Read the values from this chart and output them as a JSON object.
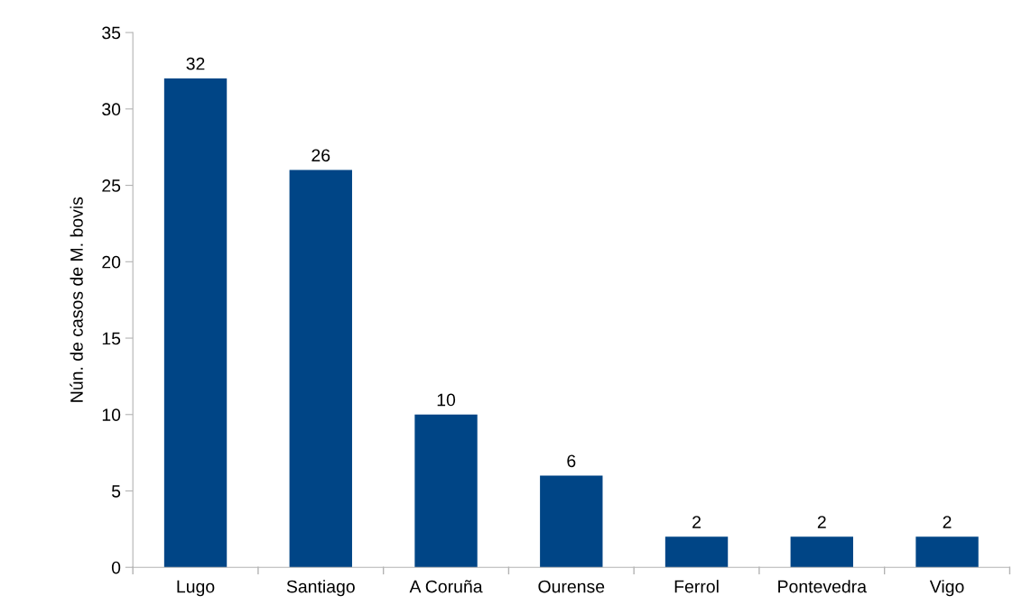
{
  "chart_data": {
    "type": "bar",
    "categories": [
      "Lugo",
      "Santiago",
      "A Coruña",
      "Ourense",
      "Ferrol",
      "Pontevedra",
      "Vigo"
    ],
    "values": [
      32,
      26,
      10,
      6,
      2,
      2,
      2
    ],
    "color": "#004586",
    "ylabel": "Nún. de casos de M. bovis",
    "ylim": [
      0,
      35
    ],
    "yticks": [
      0,
      5,
      10,
      15,
      20,
      25,
      30,
      35
    ],
    "data_labels": true,
    "grid": false,
    "legend": false
  }
}
